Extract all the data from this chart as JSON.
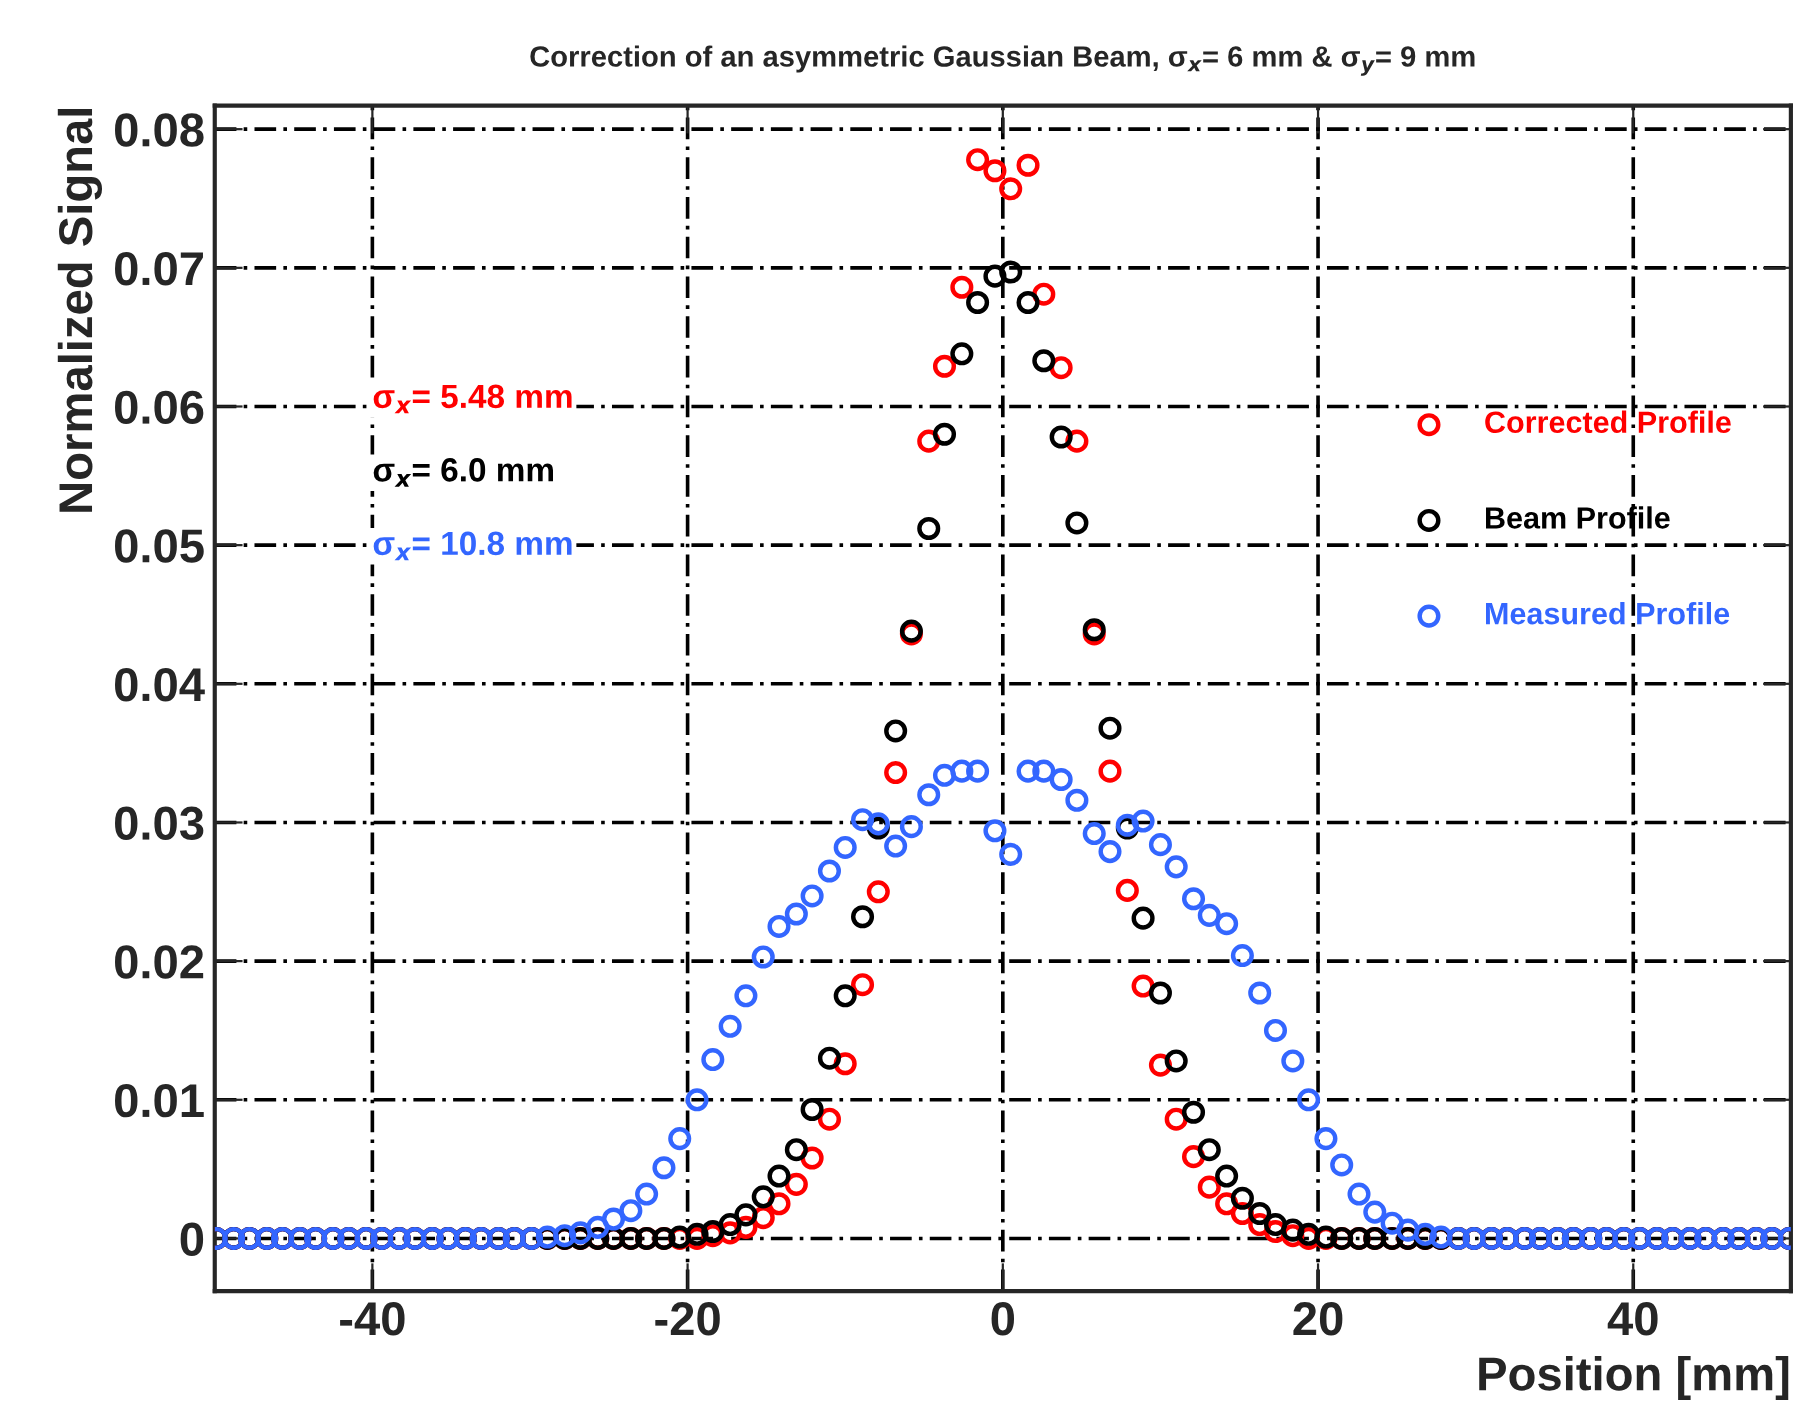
{
  "chart_data": {
    "type": "scatter",
    "title": "Correction of an asymmetric Gaussian Beam, σ$_{x}$= 6 mm & σ$_{y}$= 9 mm",
    "xlabel": "Position [mm]",
    "ylabel": "Normalized Signal",
    "x": [
      -49.9,
      -48.8,
      -47.8,
      -46.7,
      -45.7,
      -44.6,
      -43.6,
      -42.5,
      -41.5,
      -40.4,
      -39.4,
      -38.3,
      -37.3,
      -36.2,
      -35.2,
      -34.1,
      -33.1,
      -32.0,
      -31.0,
      -29.9,
      -28.9,
      -27.8,
      -26.8,
      -25.7,
      -24.7,
      -23.6,
      -22.6,
      -21.5,
      -20.5,
      -19.4,
      -18.4,
      -17.3,
      -16.3,
      -15.2,
      -14.2,
      -13.1,
      -12.1,
      -11.0,
      -10.0,
      -8.9,
      -7.9,
      -6.8,
      -5.8,
      -4.7,
      -3.7,
      -2.6,
      -1.6,
      -0.5,
      0.5,
      1.6,
      2.6,
      3.7,
      4.7,
      5.8,
      6.8,
      7.9,
      8.9,
      10.0,
      11.0,
      12.1,
      13.1,
      14.2,
      15.2,
      16.3,
      17.3,
      18.4,
      19.4,
      20.5,
      21.5,
      22.6,
      23.6,
      24.7,
      25.7,
      26.8,
      27.8,
      28.9,
      29.9,
      31.0,
      32.0,
      33.1,
      34.1,
      35.2,
      36.2,
      37.3,
      38.3,
      39.4,
      40.4,
      41.5,
      42.5,
      43.6,
      44.6,
      45.7,
      46.7,
      47.8,
      48.8,
      49.9
    ],
    "series": [
      {
        "name": "Corrected Profile",
        "color": "#ff0000",
        "values": [
          0,
          0,
          0,
          0,
          0,
          0,
          0,
          0,
          0,
          0,
          0,
          0,
          0,
          0,
          0,
          0,
          0,
          0,
          0,
          0,
          0,
          0,
          0,
          0,
          0,
          0,
          0,
          0,
          0,
          0,
          0.0002,
          0.0004,
          0.0008,
          0.0015,
          0.0025,
          0.0039,
          0.0058,
          0.0086,
          0.0126,
          0.0183,
          0.025,
          0.0336,
          0.0436,
          0.0575,
          0.0629,
          0.0686,
          0.0778,
          0.077,
          0.0757,
          0.0774,
          0.0681,
          0.0628,
          0.0575,
          0.0436,
          0.0337,
          0.0251,
          0.0182,
          0.0125,
          0.0086,
          0.0059,
          0.0037,
          0.0025,
          0.0018,
          0.001,
          0.0005,
          0.0002,
          0,
          0,
          0,
          0,
          0,
          0,
          0,
          0,
          0,
          0,
          0,
          0,
          0,
          0,
          0,
          0,
          0,
          0,
          0,
          0,
          0,
          0,
          0,
          0,
          0,
          0,
          0,
          0,
          0,
          0
        ]
      },
      {
        "name": "Beam Profile",
        "color": "#000000",
        "values": [
          0,
          0,
          0,
          0,
          0,
          0,
          0,
          0,
          0,
          0,
          0,
          0,
          0,
          0,
          0,
          0,
          0,
          0,
          0,
          0,
          0,
          0,
          0,
          0,
          0,
          0,
          0,
          0,
          0.0001,
          0.0003,
          0.0005,
          0.001,
          0.0017,
          0.003,
          0.0045,
          0.0064,
          0.0093,
          0.013,
          0.0175,
          0.0232,
          0.0296,
          0.0366,
          0.0438,
          0.0512,
          0.058,
          0.0638,
          0.0675,
          0.0694,
          0.0697,
          0.0675,
          0.0633,
          0.0578,
          0.0516,
          0.0439,
          0.0368,
          0.0296,
          0.0231,
          0.0177,
          0.0128,
          0.0091,
          0.0064,
          0.0045,
          0.0029,
          0.0018,
          0.001,
          0.0006,
          0.0003,
          0.0001,
          0,
          0,
          0,
          0,
          0,
          0,
          0,
          0,
          0,
          0,
          0,
          0,
          0,
          0,
          0,
          0,
          0,
          0,
          0,
          0,
          0,
          0,
          0,
          0,
          0,
          0,
          0,
          0
        ]
      },
      {
        "name": "Measured Profile",
        "color": "#3366ff",
        "values": [
          0,
          0,
          0,
          0,
          0,
          0,
          0,
          0,
          0,
          0,
          0,
          0,
          0,
          0,
          0,
          0,
          0,
          0,
          0,
          0,
          0.0001,
          0.0002,
          0.0004,
          0.0008,
          0.0014,
          0.002,
          0.0032,
          0.0051,
          0.0072,
          0.01,
          0.0129,
          0.0153,
          0.0175,
          0.0203,
          0.0225,
          0.0234,
          0.0247,
          0.0265,
          0.0282,
          0.0302,
          0.0299,
          0.0283,
          0.0297,
          0.032,
          0.0334,
          0.0337,
          0.0337,
          0.0294,
          0.0277,
          0.0337,
          0.0337,
          0.0331,
          0.0316,
          0.0292,
          0.0279,
          0.0298,
          0.0301,
          0.0284,
          0.0268,
          0.0245,
          0.0233,
          0.0227,
          0.0204,
          0.0177,
          0.015,
          0.0128,
          0.01,
          0.0072,
          0.0053,
          0.0032,
          0.0019,
          0.0011,
          0.0006,
          0.0003,
          0.0001,
          0,
          0,
          0,
          0,
          0,
          0,
          0,
          0,
          0,
          0,
          0,
          0,
          0,
          0,
          0,
          0,
          0,
          0,
          0,
          0,
          0
        ]
      }
    ],
    "annotations": [
      "σ$_{x}$= 5.48 mm",
      "σ$_{x}$= 6.0 mm",
      "σ$_{x}$= 10.8 mm"
    ],
    "xlim": [
      -50,
      50
    ],
    "xticks": [
      -40,
      -20,
      0,
      20,
      40
    ],
    "ylim": [
      -0.0038,
      0.0817
    ],
    "yticks": [
      0,
      0.01,
      0.02,
      0.03,
      0.04,
      0.05,
      0.06,
      0.07,
      0.08
    ],
    "grid": true,
    "legend": "right",
    "marker": "circle"
  }
}
